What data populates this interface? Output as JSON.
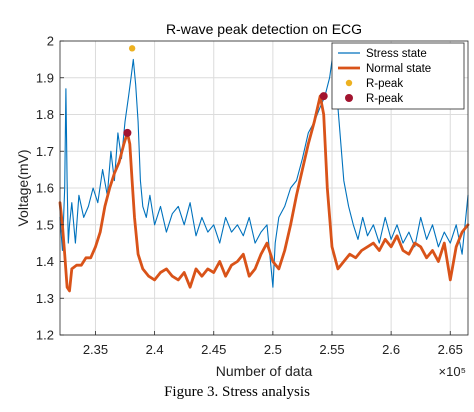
{
  "caption": "Figure 3. Stress analysis",
  "chart_data": {
    "type": "line",
    "title": "R-wave peak detection on ECG",
    "xlabel": "Number of data",
    "ylabel": "Voltage(mV)",
    "x_exponent_label": "×10⁵",
    "xlim": [
      2.32,
      2.665
    ],
    "ylim": [
      1.2,
      2.0
    ],
    "x_ticks": [
      "2.35",
      "2.4",
      "2.45",
      "2.5",
      "2.55",
      "2.6",
      "2.65"
    ],
    "y_ticks": [
      "1.2",
      "1.3",
      "1.4",
      "1.5",
      "1.6",
      "1.7",
      "1.8",
      "1.9",
      "2"
    ],
    "grid": true,
    "legend_position": "top-right",
    "series": [
      {
        "name": "Stress state",
        "kind": "line",
        "color": "#0072bd",
        "x": [
          2.32,
          2.322,
          2.324,
          2.325,
          2.326,
          2.327,
          2.328,
          2.33,
          2.333,
          2.336,
          2.34,
          2.344,
          2.348,
          2.352,
          2.356,
          2.36,
          2.363,
          2.366,
          2.369,
          2.372,
          2.375,
          2.378,
          2.38,
          2.382,
          2.384,
          2.386,
          2.388,
          2.39,
          2.393,
          2.396,
          2.4,
          2.405,
          2.41,
          2.415,
          2.42,
          2.425,
          2.43,
          2.435,
          2.44,
          2.445,
          2.45,
          2.455,
          2.46,
          2.465,
          2.47,
          2.475,
          2.48,
          2.485,
          2.49,
          2.495,
          2.5,
          2.502,
          2.505,
          2.51,
          2.515,
          2.52,
          2.525,
          2.53,
          2.535,
          2.54,
          2.544,
          2.548,
          2.551,
          2.553,
          2.556,
          2.56,
          2.564,
          2.568,
          2.572,
          2.576,
          2.58,
          2.585,
          2.59,
          2.595,
          2.6,
          2.605,
          2.61,
          2.615,
          2.62,
          2.625,
          2.63,
          2.635,
          2.64,
          2.645,
          2.65,
          2.655,
          2.66,
          2.665
        ],
        "y": [
          1.52,
          1.43,
          1.6,
          1.87,
          1.62,
          1.45,
          1.5,
          1.56,
          1.45,
          1.58,
          1.52,
          1.55,
          1.6,
          1.56,
          1.65,
          1.58,
          1.7,
          1.62,
          1.75,
          1.68,
          1.78,
          1.85,
          1.9,
          1.95,
          1.88,
          1.78,
          1.62,
          1.55,
          1.52,
          1.58,
          1.5,
          1.55,
          1.48,
          1.53,
          1.55,
          1.5,
          1.56,
          1.47,
          1.52,
          1.48,
          1.5,
          1.45,
          1.52,
          1.48,
          1.5,
          1.47,
          1.52,
          1.45,
          1.48,
          1.5,
          1.33,
          1.45,
          1.52,
          1.55,
          1.6,
          1.62,
          1.68,
          1.75,
          1.78,
          1.82,
          1.85,
          1.9,
          1.97,
          1.9,
          1.78,
          1.62,
          1.55,
          1.5,
          1.46,
          1.52,
          1.47,
          1.5,
          1.45,
          1.52,
          1.46,
          1.5,
          1.45,
          1.48,
          1.44,
          1.52,
          1.46,
          1.5,
          1.44,
          1.48,
          1.45,
          1.5,
          1.42,
          1.58
        ]
      },
      {
        "name": "Normal state",
        "kind": "line",
        "color": "#d95319",
        "x": [
          2.32,
          2.322,
          2.324,
          2.326,
          2.328,
          2.33,
          2.334,
          2.338,
          2.342,
          2.346,
          2.35,
          2.354,
          2.358,
          2.362,
          2.366,
          2.37,
          2.374,
          2.377,
          2.379,
          2.381,
          2.383,
          2.386,
          2.39,
          2.395,
          2.4,
          2.405,
          2.41,
          2.415,
          2.42,
          2.425,
          2.43,
          2.435,
          2.44,
          2.445,
          2.45,
          2.455,
          2.46,
          2.465,
          2.47,
          2.475,
          2.48,
          2.485,
          2.49,
          2.495,
          2.5,
          2.505,
          2.51,
          2.515,
          2.52,
          2.525,
          2.53,
          2.535,
          2.54,
          2.543,
          2.546,
          2.55,
          2.555,
          2.56,
          2.565,
          2.57,
          2.575,
          2.58,
          2.585,
          2.59,
          2.595,
          2.6,
          2.605,
          2.61,
          2.615,
          2.62,
          2.625,
          2.63,
          2.635,
          2.64,
          2.645,
          2.65,
          2.655,
          2.66,
          2.665
        ],
        "y": [
          1.56,
          1.5,
          1.42,
          1.33,
          1.32,
          1.38,
          1.39,
          1.39,
          1.41,
          1.41,
          1.44,
          1.48,
          1.55,
          1.6,
          1.64,
          1.67,
          1.72,
          1.75,
          1.72,
          1.62,
          1.52,
          1.42,
          1.38,
          1.36,
          1.35,
          1.37,
          1.38,
          1.36,
          1.35,
          1.37,
          1.33,
          1.38,
          1.36,
          1.38,
          1.37,
          1.4,
          1.36,
          1.39,
          1.4,
          1.42,
          1.36,
          1.38,
          1.42,
          1.45,
          1.4,
          1.38,
          1.43,
          1.5,
          1.58,
          1.65,
          1.72,
          1.78,
          1.85,
          1.8,
          1.6,
          1.44,
          1.38,
          1.4,
          1.42,
          1.41,
          1.43,
          1.44,
          1.45,
          1.43,
          1.46,
          1.44,
          1.47,
          1.43,
          1.42,
          1.45,
          1.44,
          1.41,
          1.43,
          1.4,
          1.45,
          1.35,
          1.44,
          1.48,
          1.5
        ]
      },
      {
        "name": "R-peak",
        "kind": "marker",
        "color": "#edb120",
        "x": [
          2.381,
          2.553
        ],
        "y": [
          1.98,
          1.98
        ]
      },
      {
        "name": "R-peak",
        "kind": "marker",
        "color": "#a2142f",
        "x": [
          2.377,
          2.543
        ],
        "y": [
          1.75,
          1.85
        ]
      }
    ]
  }
}
